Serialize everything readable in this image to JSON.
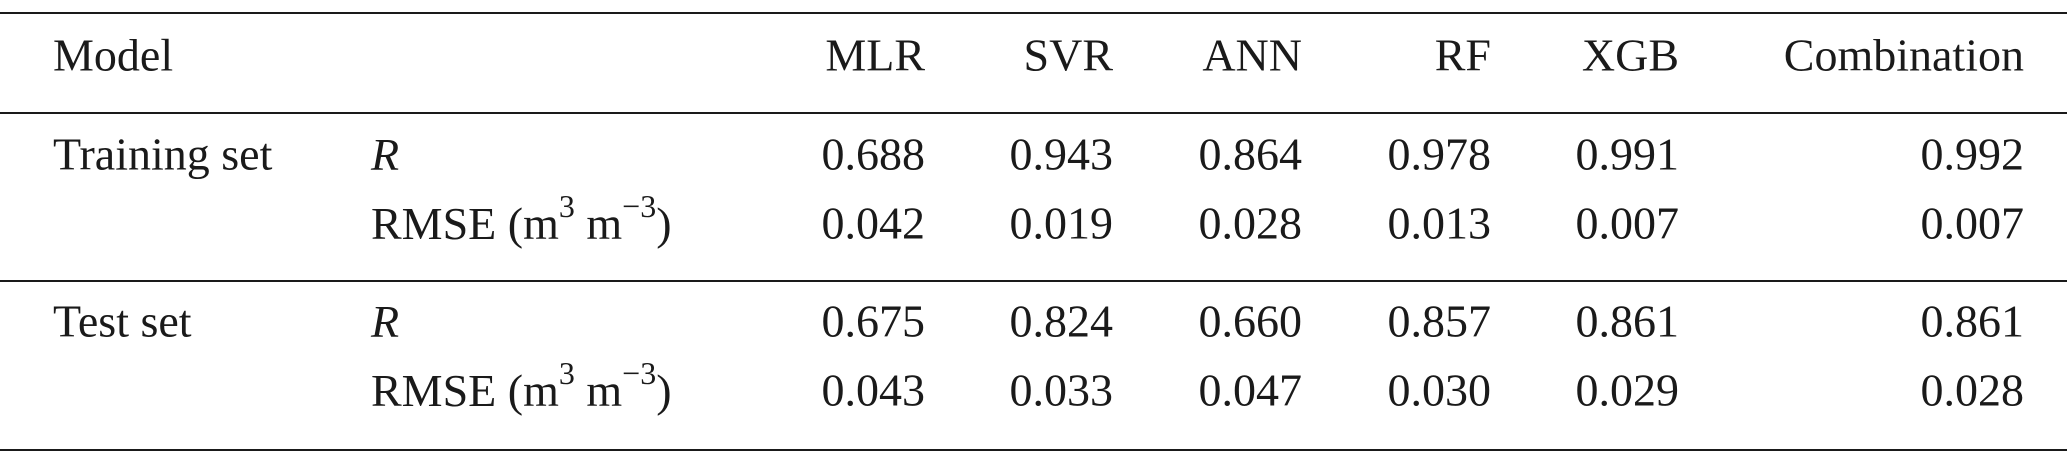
{
  "table": {
    "header": {
      "model": "Model",
      "columns": [
        "MLR",
        "SVR",
        "ANN",
        "RF",
        "XGB",
        "Combination"
      ]
    },
    "groups": [
      {
        "name": "Training set",
        "rows": [
          {
            "metric": [
              "R"
            ],
            "italic": true,
            "values": [
              "0.688",
              "0.943",
              "0.864",
              "0.978",
              "0.991",
              "0.992"
            ]
          },
          {
            "metric": [
              "RMSE (m",
              "3",
              " m",
              "−3",
              ")"
            ],
            "italic": false,
            "values": [
              "0.042",
              "0.019",
              "0.028",
              "0.013",
              "0.007",
              "0.007"
            ]
          }
        ]
      },
      {
        "name": "Test set",
        "rows": [
          {
            "metric": [
              "R"
            ],
            "italic": true,
            "values": [
              "0.675",
              "0.824",
              "0.660",
              "0.857",
              "0.861",
              "0.861"
            ]
          },
          {
            "metric": [
              "RMSE (m",
              "3",
              " m",
              "−3",
              ")"
            ],
            "italic": false,
            "values": [
              "0.043",
              "0.033",
              "0.047",
              "0.030",
              "0.029",
              "0.028"
            ]
          }
        ]
      }
    ]
  }
}
